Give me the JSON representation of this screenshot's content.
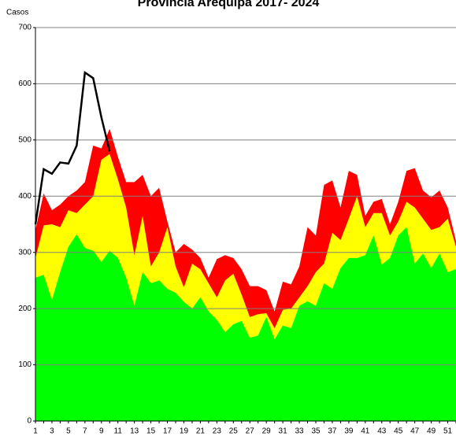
{
  "chart_data": {
    "type": "area",
    "title": "Provincia Arequipa  2017- 2024",
    "y_label": "Casos",
    "categories": [
      1,
      null,
      3,
      null,
      5,
      null,
      7,
      null,
      9,
      null,
      11,
      null,
      13,
      null,
      15,
      null,
      17,
      null,
      19,
      null,
      21,
      null,
      23,
      null,
      25,
      null,
      27,
      null,
      29,
      null,
      31,
      null,
      33,
      null,
      35,
      null,
      37,
      null,
      39,
      null,
      41,
      null,
      43,
      null,
      45,
      null,
      47,
      null,
      49,
      null,
      51,
      null
    ],
    "series": [
      {
        "color": "#ff0000",
        "values": [
          340,
          405,
          375,
          385,
          400,
          410,
          425,
          490,
          485,
          520,
          470,
          425,
          425,
          438,
          400,
          415,
          355,
          300,
          315,
          305,
          290,
          255,
          288,
          295,
          290,
          270,
          240,
          240,
          233,
          195,
          248,
          243,
          275,
          345,
          330,
          420,
          428,
          380,
          445,
          438,
          365,
          390,
          395,
          350,
          390,
          445,
          450,
          410,
          398,
          410,
          380,
          320
        ]
      },
      {
        "color": "#ffff00",
        "values": [
          290,
          348,
          350,
          345,
          375,
          370,
          385,
          400,
          465,
          475,
          430,
          380,
          295,
          365,
          275,
          300,
          345,
          275,
          238,
          280,
          270,
          245,
          220,
          250,
          262,
          225,
          185,
          190,
          192,
          165,
          198,
          200,
          220,
          240,
          265,
          280,
          335,
          322,
          360,
          400,
          345,
          370,
          370,
          330,
          355,
          390,
          380,
          360,
          340,
          345,
          360,
          310
        ]
      },
      {
        "color": "#00ff00",
        "values": [
          255,
          260,
          215,
          265,
          310,
          332,
          308,
          303,
          283,
          303,
          290,
          255,
          205,
          265,
          245,
          250,
          235,
          228,
          212,
          200,
          220,
          195,
          180,
          158,
          172,
          178,
          148,
          152,
          185,
          145,
          170,
          165,
          205,
          213,
          205,
          245,
          235,
          272,
          290,
          290,
          295,
          330,
          278,
          290,
          330,
          345,
          280,
          298,
          272,
          298,
          265,
          270
        ]
      },
      {
        "type": "line",
        "color": "#000000",
        "values": [
          350,
          448,
          440,
          460,
          458,
          490,
          620,
          610,
          540,
          480,
          null,
          null,
          null,
          null,
          null,
          null,
          null,
          null,
          null,
          null,
          null,
          null,
          null,
          null,
          null,
          null,
          null,
          null,
          null,
          null,
          null,
          null,
          null,
          null,
          null,
          null,
          null,
          null,
          null,
          null,
          null,
          null,
          null,
          null,
          null,
          null,
          null,
          null,
          null,
          null,
          null,
          null
        ]
      }
    ],
    "ylim": [
      0,
      700
    ],
    "yticks": [
      0,
      100,
      200,
      300,
      400,
      500,
      600,
      700
    ],
    "grid": true
  }
}
